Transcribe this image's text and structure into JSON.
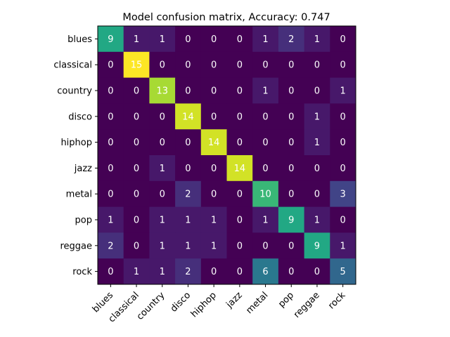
{
  "chart_data": {
    "type": "heatmap",
    "title": "Model confusion matrix, Accuracy: 0.747",
    "x_categories": [
      "blues",
      "classical",
      "country",
      "disco",
      "hiphop",
      "jazz",
      "metal",
      "pop",
      "reggae",
      "rock"
    ],
    "y_categories": [
      "blues",
      "classical",
      "country",
      "disco",
      "hiphop",
      "jazz",
      "metal",
      "pop",
      "reggae",
      "rock"
    ],
    "matrix": [
      [
        9,
        1,
        1,
        0,
        0,
        0,
        1,
        2,
        1,
        0
      ],
      [
        0,
        15,
        0,
        0,
        0,
        0,
        0,
        0,
        0,
        0
      ],
      [
        0,
        0,
        13,
        0,
        0,
        0,
        1,
        0,
        0,
        1
      ],
      [
        0,
        0,
        0,
        14,
        0,
        0,
        0,
        0,
        1,
        0
      ],
      [
        0,
        0,
        0,
        0,
        14,
        0,
        0,
        0,
        1,
        0
      ],
      [
        0,
        0,
        1,
        0,
        0,
        14,
        0,
        0,
        0,
        0
      ],
      [
        0,
        0,
        0,
        2,
        0,
        0,
        10,
        0,
        0,
        3
      ],
      [
        1,
        0,
        1,
        1,
        1,
        0,
        1,
        9,
        1,
        0
      ],
      [
        2,
        0,
        1,
        1,
        1,
        0,
        0,
        0,
        9,
        1
      ],
      [
        0,
        1,
        1,
        2,
        0,
        0,
        6,
        0,
        0,
        5
      ]
    ],
    "value_range": [
      0,
      15
    ],
    "colormap": "viridis",
    "grid": false
  }
}
